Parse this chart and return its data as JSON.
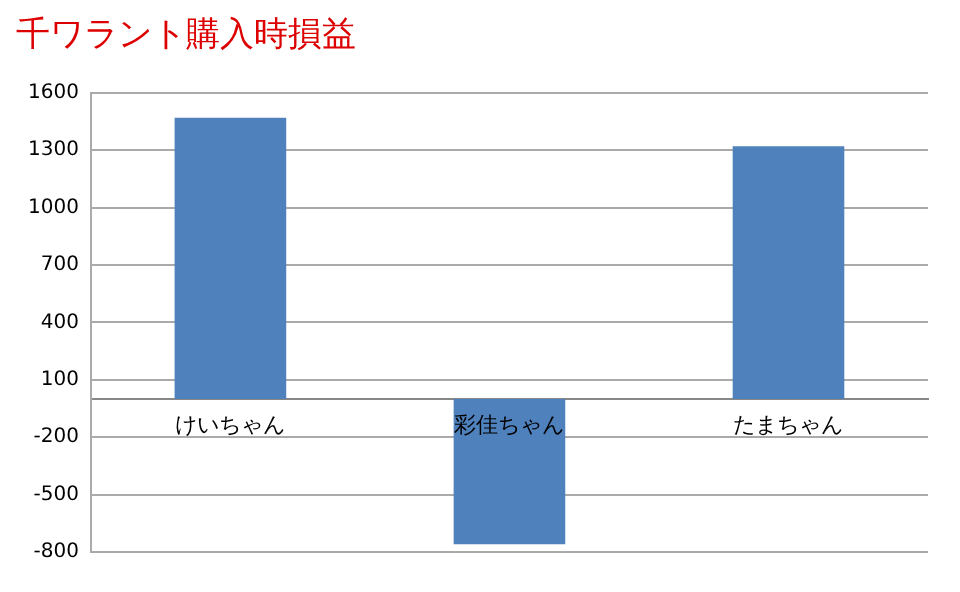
{
  "chart_data": {
    "type": "bar",
    "title": "千ワラント購入時損益",
    "categories": [
      "けいちゃん",
      "彩佳ちゃん",
      "たまちゃん"
    ],
    "series": [
      {
        "color": "#4f81bd",
        "values": [
          1470,
          -760,
          1320
        ]
      }
    ],
    "ylim": [
      -800,
      1600
    ],
    "yticks": [
      -800,
      -500,
      -200,
      100,
      400,
      700,
      1000,
      1300,
      1600
    ],
    "grid": "y"
  }
}
